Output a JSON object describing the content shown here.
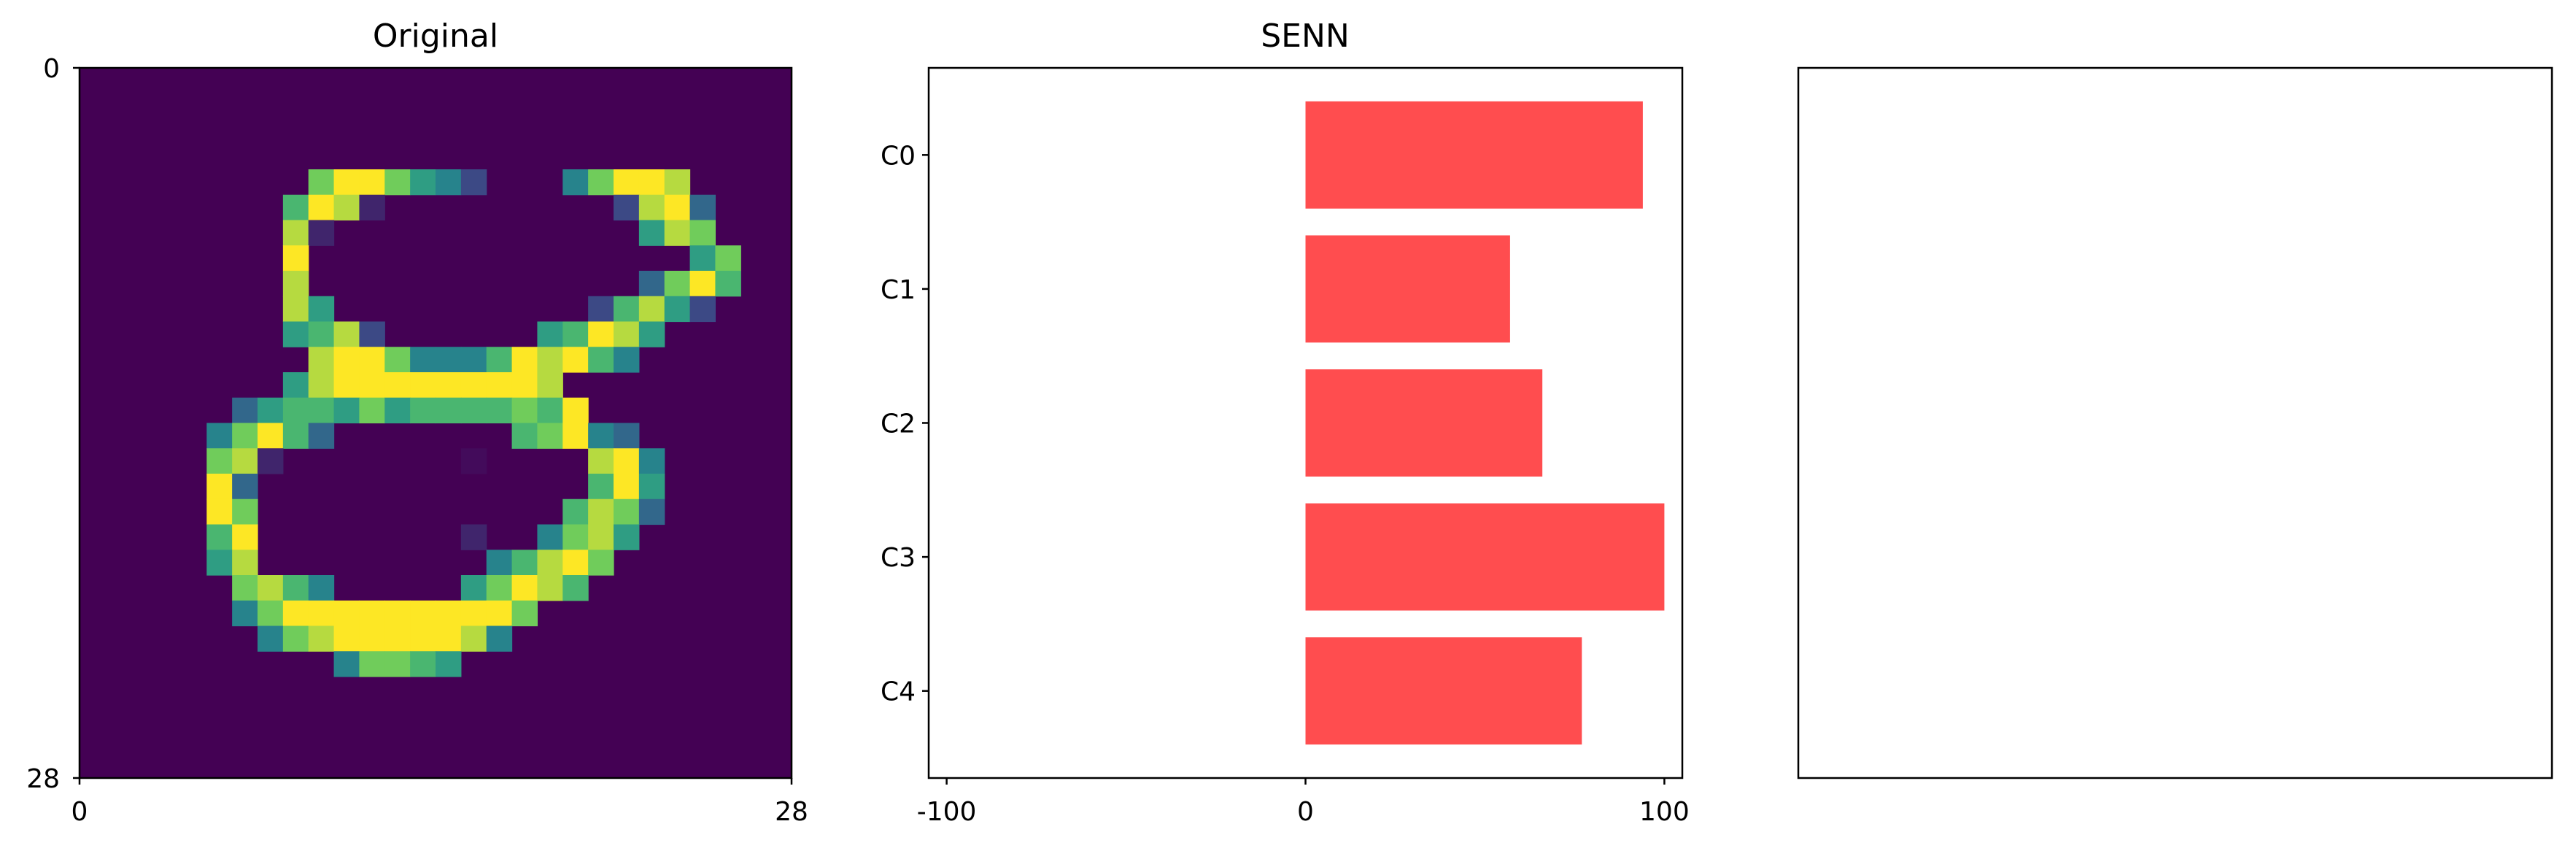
{
  "colors": {
    "bar": "#ff4d4f",
    "viridis": [
      "#440154",
      "#3b528b",
      "#21918c",
      "#5ec962",
      "#fde725"
    ]
  },
  "chart_data": [
    {
      "type": "heatmap",
      "title": "Original",
      "xlabel": "",
      "ylabel": "",
      "xlim": [
        0,
        28
      ],
      "ylim": [
        28,
        0
      ],
      "xticks": [
        "0",
        "28"
      ],
      "yticks": [
        "0",
        "28"
      ],
      "colormap": "viridis",
      "value_range": [
        0,
        1
      ],
      "rows": [
        "............................",
        "............................",
        "............................",
        "............................",
        ".........7997542...47998....",
        "........6981.........2893...",
        "........81............587...",
        "........9...............57..",
        "........8.............3796..",
        "........85..........26852...",
        "........5682......56985.....",
        ".........8997444698964......",
        "........58999999998.........",
        "......35665756666769........",
        ".....47963.......67943......",
        ".....781.......,....894.....",
        ".....93.............695.....",
        ".....97............6873.....",
        ".....69........1..4785......",
        ".....58.........46897.......",
        "......7864.....57986........",
        "......479999999997..........",
        ".......4789999984...........",
        "..........47765.............",
        "............................",
        "............................",
        "............................",
        "............................"
      ]
    },
    {
      "type": "bar",
      "orientation": "horizontal",
      "title": "SENN",
      "xlabel": "",
      "ylabel": "",
      "categories": [
        "C0",
        "C1",
        "C2",
        "C3",
        "C4"
      ],
      "values": [
        94,
        57,
        66,
        100,
        77
      ],
      "xlim": [
        -105,
        105
      ],
      "xticks": [
        "-100",
        "0",
        "100"
      ],
      "grid": false
    },
    {
      "type": "bar",
      "title": "",
      "xlabel": "",
      "ylabel": "",
      "categories": [],
      "values": [],
      "xticks": [],
      "yticks": []
    }
  ]
}
